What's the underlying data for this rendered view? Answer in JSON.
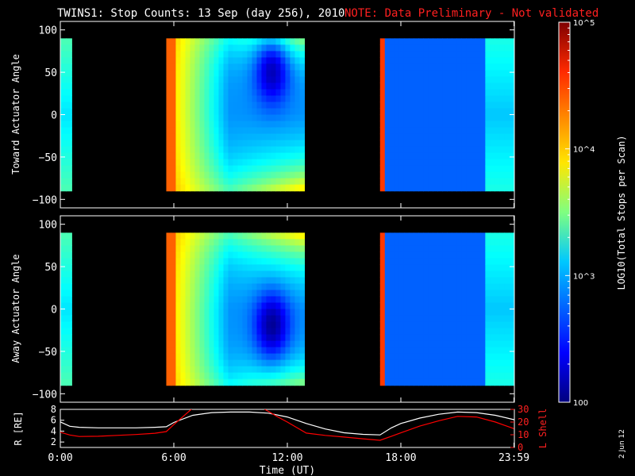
{
  "header": {
    "title": "TWINS1: Stop Counts: 13 Sep (day 256), 2010",
    "note": "NOTE: Data Preliminary - Not validated"
  },
  "side_stamp": "2 Jun 12",
  "colorbar": {
    "label": "LOG10(Total Stops per Scan)",
    "ticks": [
      {
        "value": 100,
        "label": "100"
      },
      {
        "value": 1000,
        "label": "10^3"
      },
      {
        "value": 10000,
        "label": "10^4"
      },
      {
        "value": 100000,
        "label": "10^5"
      }
    ],
    "range": [
      100,
      100000
    ],
    "scale": "log"
  },
  "chart_data": [
    {
      "type": "heatmap",
      "ylabel": "Toward Actuator Angle",
      "ylim": [
        -110,
        110
      ],
      "yticks": [
        100,
        50,
        0,
        -50,
        -100
      ],
      "xlim": [
        0,
        24
      ],
      "data_ylim": [
        -90,
        90
      ],
      "segments": [
        [
          0,
          0.6
        ],
        [
          5.6,
          12.9
        ],
        [
          16.9,
          23.98
        ]
      ],
      "colorscale": "jet"
    },
    {
      "type": "heatmap",
      "ylabel": "Away Actuator Angle",
      "ylim": [
        -110,
        110
      ],
      "yticks": [
        100,
        50,
        0,
        -50,
        -100
      ],
      "xlim": [
        0,
        24
      ],
      "data_ylim": [
        -90,
        90
      ],
      "segments": [
        [
          0,
          0.6
        ],
        [
          5.6,
          12.9
        ],
        [
          16.9,
          23.98
        ]
      ],
      "colorscale": "jet"
    },
    {
      "type": "line",
      "ylabel_left": "R [RE]",
      "ylabel_right": "L Shell",
      "ylim_left": [
        1,
        8
      ],
      "yticks_left": [
        8,
        6,
        4,
        2
      ],
      "ylim_right": [
        0,
        30
      ],
      "yticks_right": [
        30,
        20,
        10,
        0
      ],
      "xlim": [
        0,
        24
      ],
      "xlabel": "Time (UT)",
      "xticks": [
        {
          "value": 0,
          "label": "0:00"
        },
        {
          "value": 6,
          "label": "6:00"
        },
        {
          "value": 12,
          "label": "12:00"
        },
        {
          "value": 18,
          "label": "18:00"
        },
        {
          "value": 23.98,
          "label": "23:59"
        }
      ],
      "series": [
        {
          "color": "#ffffff",
          "x": [
            0,
            0.5,
            1,
            2,
            3,
            4,
            5,
            5.6,
            6,
            7,
            8,
            9,
            10,
            11,
            12,
            13,
            14,
            15,
            16,
            16.9,
            17.5,
            18,
            19,
            20,
            21,
            22,
            23,
            23.98
          ],
          "y": [
            5.7,
            4.9,
            4.7,
            4.6,
            4.6,
            4.6,
            4.7,
            4.8,
            5.6,
            6.9,
            7.4,
            7.5,
            7.5,
            7.3,
            6.6,
            5.4,
            4.4,
            3.7,
            3.4,
            3.3,
            4.6,
            5.4,
            6.4,
            7.1,
            7.5,
            7.4,
            6.9,
            6.1
          ]
        },
        {
          "color": "#ff0000",
          "axis": "right",
          "x": [
            0,
            0.5,
            1,
            2,
            3,
            4,
            5,
            5.6,
            6,
            7,
            8,
            9,
            10,
            10.7,
            11.5,
            12,
            13,
            14,
            15,
            16,
            16.9,
            17.5,
            18,
            19,
            20,
            21,
            22,
            23,
            23.98
          ],
          "y": [
            12,
            9.8,
            8.6,
            8.8,
            9.5,
            10.2,
            11.2,
            12.5,
            18,
            31,
            34,
            34,
            34,
            31,
            24,
            20,
            11.3,
            9.5,
            8.2,
            6.8,
            5.6,
            8.8,
            11.5,
            16.8,
            21,
            24.5,
            24,
            20,
            14.8
          ]
        }
      ]
    }
  ]
}
